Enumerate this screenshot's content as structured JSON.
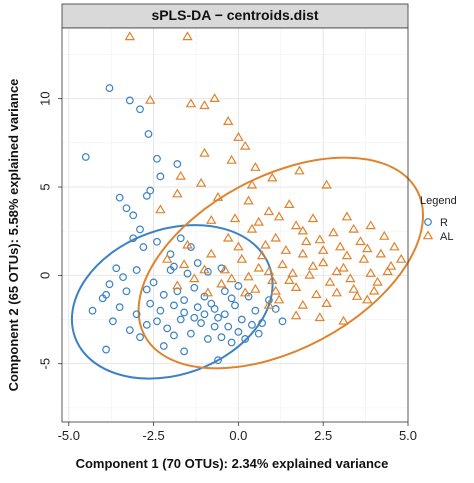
{
  "chart_data": {
    "type": "scatter",
    "title": "sPLS-DA − centroids.dist",
    "xlabel": "Component  1 (70 OTUs): 2.34% explained variance",
    "ylabel": "Component  2 (65 OTUs): 5.58% explained variance",
    "xlim": [
      -5.2,
      5.0
    ],
    "ylim": [
      -8.3,
      14.0
    ],
    "x_ticks": [
      -5.0,
      -2.5,
      0.0,
      2.5,
      5.0
    ],
    "x_tick_labels": [
      "-5.0",
      "-2.5",
      "0.0",
      "2.5",
      "5.0"
    ],
    "y_ticks": [
      -5,
      0,
      5,
      10
    ],
    "y_tick_labels": [
      "-5",
      "0",
      "5",
      "10"
    ],
    "grid": true,
    "legend": {
      "title": "Legend",
      "placement": "right"
    },
    "series": [
      {
        "name": "R",
        "color": "#3b82c4",
        "marker": "circle",
        "ellipse": {
          "cx": -1.95,
          "cy": -1.5,
          "rx": 3.05,
          "ry": 4.1,
          "angle_deg": -20
        },
        "points": [
          [
            -4.5,
            6.7
          ],
          [
            -3.8,
            10.6
          ],
          [
            -3.2,
            9.9
          ],
          [
            -2.9,
            9.4
          ],
          [
            -2.65,
            8.0
          ],
          [
            -2.4,
            6.6
          ],
          [
            -2.3,
            5.6
          ],
          [
            -1.8,
            6.3
          ],
          [
            -3.5,
            4.4
          ],
          [
            -3.3,
            3.8
          ],
          [
            -2.7,
            4.5
          ],
          [
            -3.1,
            3.4
          ],
          [
            -2.9,
            2.6
          ],
          [
            -2.4,
            1.9
          ],
          [
            -2.8,
            1.6
          ],
          [
            -2.6,
            4.8
          ],
          [
            -3.6,
            0.4
          ],
          [
            -3.0,
            0.3
          ],
          [
            -3.8,
            -0.5
          ],
          [
            -3.4,
            -0.1
          ],
          [
            -3.9,
            -1.1
          ],
          [
            -4.0,
            -1.3
          ],
          [
            -3.5,
            -1.8
          ],
          [
            -3.0,
            -2.2
          ],
          [
            -2.7,
            -2.8
          ],
          [
            -3.2,
            -3.1
          ],
          [
            -2.9,
            -3.5
          ],
          [
            -4.3,
            -2.0
          ],
          [
            -3.7,
            -2.6
          ],
          [
            -3.3,
            -0.9
          ],
          [
            -2.5,
            -0.4
          ],
          [
            -2.2,
            -1.1
          ],
          [
            -2.0,
            0.3
          ],
          [
            -1.8,
            -0.9
          ],
          [
            -1.6,
            -1.4
          ],
          [
            -1.5,
            0.1
          ],
          [
            -1.3,
            -0.7
          ],
          [
            -1.2,
            -1.8
          ],
          [
            -1.0,
            -2.2
          ],
          [
            -0.8,
            -1.6
          ],
          [
            -0.6,
            -2.4
          ],
          [
            -0.4,
            -0.9
          ],
          [
            -0.3,
            -2.9
          ],
          [
            -0.1,
            -1.7
          ],
          [
            0.1,
            -2.5
          ],
          [
            0.3,
            -1.2
          ],
          [
            0.5,
            -2.0
          ],
          [
            0.7,
            -2.7
          ],
          [
            0.9,
            -1.4
          ],
          [
            1.1,
            -1.9
          ],
          [
            -2.4,
            -2.6
          ],
          [
            -2.1,
            -3.0
          ],
          [
            -1.9,
            -3.4
          ],
          [
            -1.7,
            -2.5
          ],
          [
            -1.4,
            -3.3
          ],
          [
            -1.1,
            -2.7
          ],
          [
            -0.9,
            -3.6
          ],
          [
            -0.7,
            -2.9
          ],
          [
            -0.5,
            -3.5
          ],
          [
            -0.2,
            -3.8
          ],
          [
            0.0,
            -3.2
          ],
          [
            0.2,
            -3.6
          ],
          [
            0.4,
            -2.8
          ],
          [
            0.6,
            -3.3
          ],
          [
            -2.6,
            -1.6
          ],
          [
            -2.3,
            -2.0
          ],
          [
            -1.9,
            -1.7
          ],
          [
            -1.6,
            -2.1
          ],
          [
            -1.3,
            -2.4
          ],
          [
            -1.0,
            -1.2
          ],
          [
            -0.7,
            -1.9
          ],
          [
            -0.4,
            -2.2
          ],
          [
            -0.2,
            -1.3
          ],
          [
            0.0,
            -0.6
          ],
          [
            -3.9,
            -4.2
          ],
          [
            -2.2,
            -4.0
          ],
          [
            -1.6,
            -4.3
          ],
          [
            -0.6,
            -4.8
          ],
          [
            -1.2,
            0.7
          ],
          [
            -0.9,
            0.2
          ],
          [
            -2.0,
            1.2
          ],
          [
            -1.7,
            2.1
          ],
          [
            -3.1,
            2.1
          ],
          [
            -1.4,
            1.6
          ],
          [
            -2.7,
            -0.8
          ],
          [
            1.3,
            -2.6
          ],
          [
            -1.9,
            0.5
          ],
          [
            -0.5,
            0.4
          ]
        ]
      },
      {
        "name": "AL",
        "color": "#e0832e",
        "marker": "triangle",
        "ellipse": {
          "cx": 1.25,
          "cy": 0.7,
          "rx": 4.55,
          "ry": 4.9,
          "angle_deg": -28
        },
        "points": [
          [
            -3.2,
            13.5
          ],
          [
            -1.5,
            13.5
          ],
          [
            -2.6,
            9.9
          ],
          [
            -0.7,
            10.0
          ],
          [
            -1.4,
            9.7
          ],
          [
            -1.0,
            9.6
          ],
          [
            -0.3,
            8.7
          ],
          [
            0.0,
            7.8
          ],
          [
            0.2,
            7.3
          ],
          [
            -0.2,
            6.5
          ],
          [
            -1.0,
            6.9
          ],
          [
            -1.7,
            5.6
          ],
          [
            -1.1,
            5.2
          ],
          [
            -1.8,
            4.6
          ],
          [
            -2.3,
            3.7
          ],
          [
            0.5,
            6.1
          ],
          [
            1.0,
            5.5
          ],
          [
            1.8,
            5.9
          ],
          [
            2.6,
            5.1
          ],
          [
            -0.6,
            4.4
          ],
          [
            0.3,
            4.2
          ],
          [
            0.9,
            3.6
          ],
          [
            1.5,
            4.0
          ],
          [
            2.2,
            3.2
          ],
          [
            3.2,
            3.3
          ],
          [
            3.9,
            2.8
          ],
          [
            4.3,
            2.2
          ],
          [
            4.6,
            1.6
          ],
          [
            4.8,
            0.9
          ],
          [
            4.4,
            0.2
          ],
          [
            4.1,
            -0.4
          ],
          [
            3.8,
            -1.4
          ],
          [
            3.4,
            -0.8
          ],
          [
            3.1,
            -2.6
          ],
          [
            2.4,
            -2.4
          ],
          [
            1.7,
            -2.3
          ],
          [
            0.9,
            -1.7
          ],
          [
            0.2,
            -1.0
          ],
          [
            -0.5,
            -0.5
          ],
          [
            -1.0,
            0.3
          ],
          [
            -1.5,
            1.7
          ],
          [
            -2.1,
            0.9
          ],
          [
            -0.3,
            2.1
          ],
          [
            0.4,
            2.6
          ],
          [
            1.1,
            2.1
          ],
          [
            1.7,
            2.8
          ],
          [
            2.4,
            2.0
          ],
          [
            3.0,
            1.6
          ],
          [
            3.6,
            1.9
          ],
          [
            -0.8,
            1.2
          ],
          [
            0.0,
            1.6
          ],
          [
            0.7,
            1.1
          ],
          [
            1.3,
            0.6
          ],
          [
            1.9,
            1.2
          ],
          [
            2.5,
            0.7
          ],
          [
            3.1,
            0.4
          ],
          [
            3.7,
            0.9
          ],
          [
            4.2,
            1.2
          ],
          [
            -0.4,
            0.3
          ],
          [
            0.3,
            -0.1
          ],
          [
            0.9,
            0.2
          ],
          [
            1.5,
            -0.3
          ],
          [
            2.1,
            0.0
          ],
          [
            2.7,
            -0.4
          ],
          [
            3.3,
            -0.2
          ],
          [
            3.9,
            0.1
          ],
          [
            0.5,
            -0.8
          ],
          [
            1.1,
            -0.9
          ],
          [
            1.7,
            -0.7
          ],
          [
            2.3,
            -1.1
          ],
          [
            2.9,
            -1.0
          ],
          [
            3.5,
            -1.2
          ],
          [
            0.1,
            0.9
          ],
          [
            0.8,
            1.7
          ],
          [
            1.4,
            1.4
          ],
          [
            2.0,
            1.9
          ],
          [
            2.8,
            2.4
          ],
          [
            3.4,
            2.6
          ],
          [
            -1.3,
            -0.2
          ],
          [
            -0.9,
            -1.0
          ],
          [
            -0.2,
            -0.2
          ],
          [
            0.6,
            0.4
          ],
          [
            1.2,
            -1.4
          ],
          [
            1.9,
            -1.7
          ],
          [
            2.6,
            -1.6
          ],
          [
            -0.1,
            3.2
          ],
          [
            0.6,
            3.0
          ],
          [
            1.2,
            3.3
          ],
          [
            1.9,
            2.5
          ],
          [
            2.5,
            1.4
          ],
          [
            3.2,
            1.1
          ],
          [
            3.8,
            1.5
          ],
          [
            4.5,
            0.5
          ],
          [
            -1.6,
            0.6
          ],
          [
            -1.8,
            -0.6
          ],
          [
            0.4,
            5.1
          ],
          [
            -0.8,
            3.1
          ],
          [
            1.0,
            -0.3
          ],
          [
            2.2,
            0.5
          ],
          [
            2.9,
            0.2
          ],
          [
            4.0,
            -0.9
          ],
          [
            1.6,
            0.1
          ]
        ]
      }
    ]
  }
}
